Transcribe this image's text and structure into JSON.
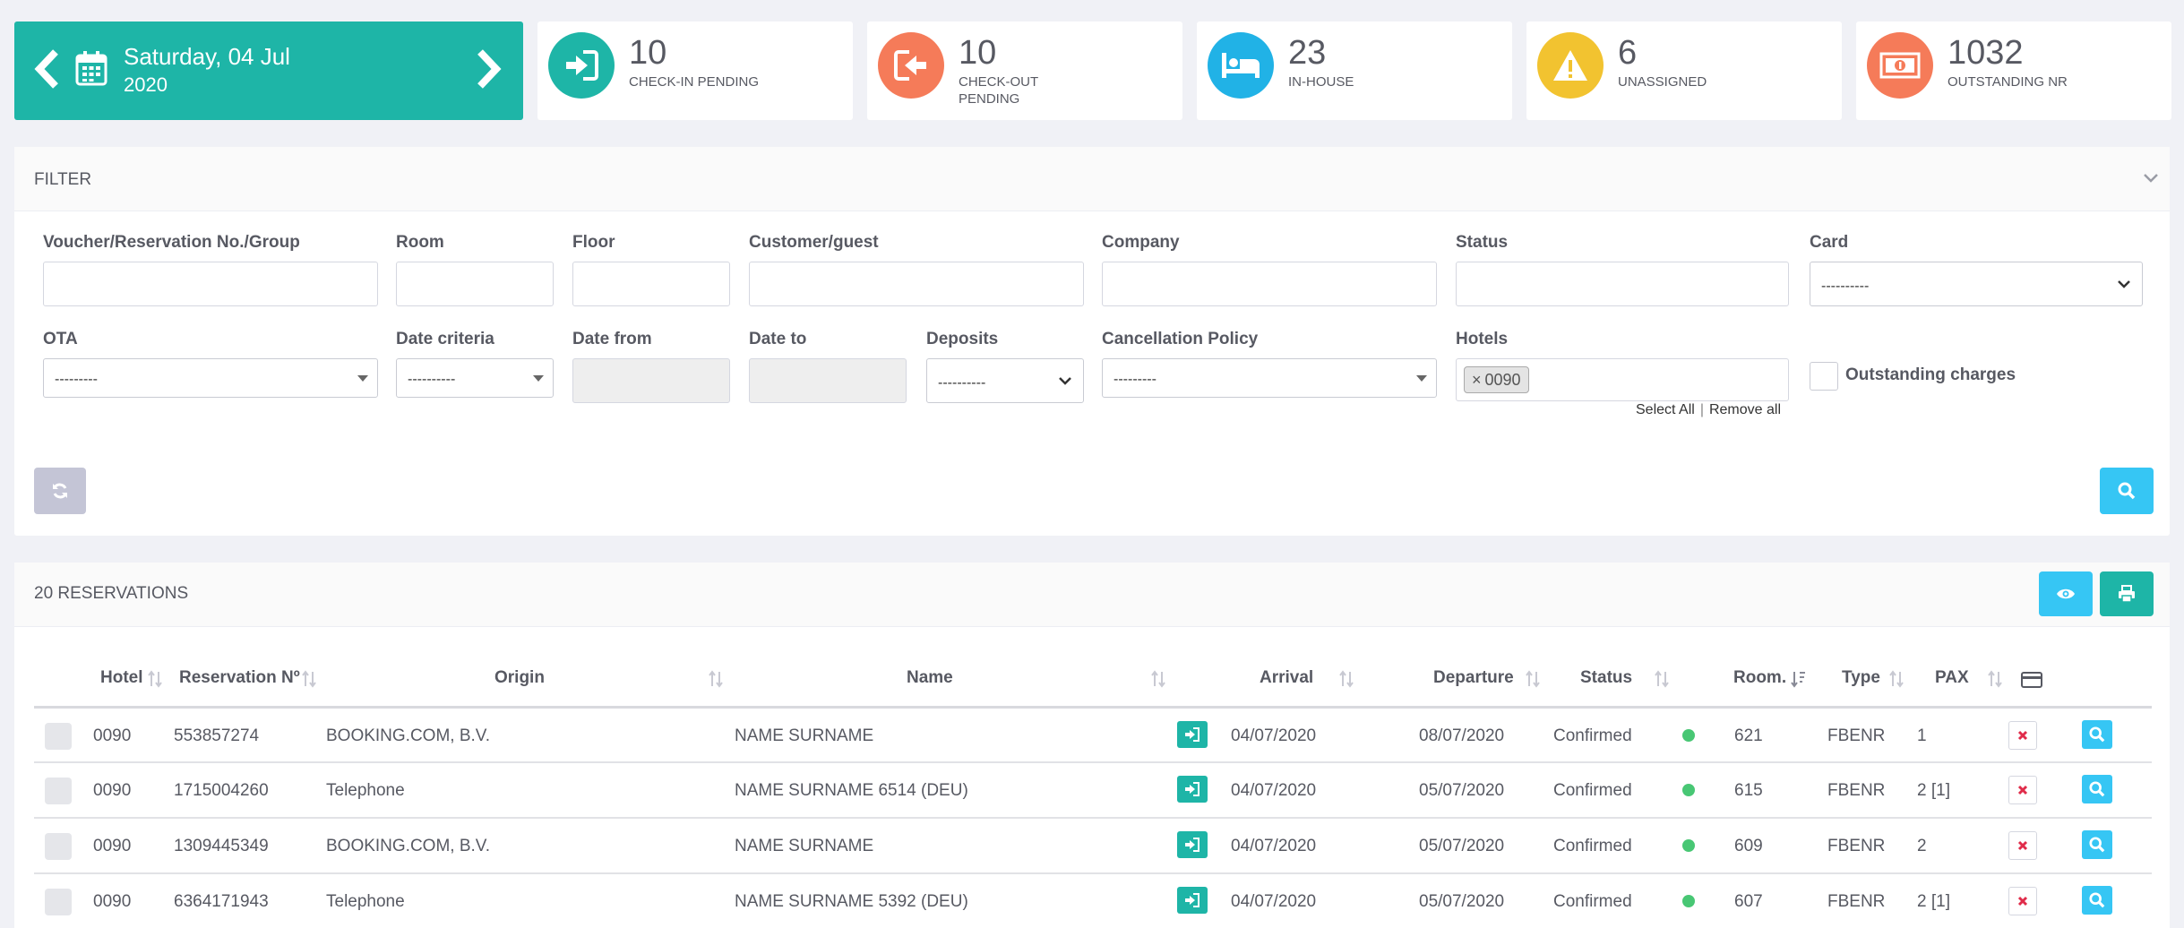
{
  "date_nav": {
    "day_line": "Saturday, 04 Jul",
    "year_line": "2020"
  },
  "stats": [
    {
      "number": "10",
      "label": "CHECK-IN PENDING",
      "color": "#1eb5a7",
      "icon": "check-in-icon"
    },
    {
      "number": "10",
      "label": "CHECK-OUT PENDING",
      "color": "#f57b59",
      "icon": "check-out-icon"
    },
    {
      "number": "23",
      "label": "IN-HOUSE",
      "color": "#21b2e6",
      "icon": "bed-icon"
    },
    {
      "number": "6",
      "label": "UNASSIGNED",
      "color": "#f2c330",
      "icon": "warning-icon"
    },
    {
      "number": "1032",
      "label": "OUTSTANDING NR",
      "color": "#f57b59",
      "icon": "money-icon"
    }
  ],
  "filter": {
    "title": "FILTER",
    "labels": {
      "voucher": "Voucher/Reservation No./Group",
      "room": "Room",
      "floor": "Floor",
      "customer": "Customer/guest",
      "company": "Company",
      "status": "Status",
      "card": "Card",
      "ota": "OTA",
      "date_criteria": "Date criteria",
      "date_from": "Date from",
      "date_to": "Date to",
      "deposits": "Deposits",
      "cancellation": "Cancellation Policy",
      "hotels": "Hotels",
      "outstanding": "Outstanding charges"
    },
    "values": {
      "card": "----------",
      "ota": "---------",
      "date_criteria": "----------",
      "deposits": "----------",
      "cancellation": "---------"
    },
    "hotel_tag": "0090",
    "hotel_tag_remove": "×",
    "select_all": "Select All",
    "separator": "|",
    "remove_all": "Remove all"
  },
  "reservations": {
    "title": "20 RESERVATIONS",
    "columns": {
      "hotel": "Hotel",
      "reservation": "Reservation Nº",
      "origin": "Origin",
      "name": "Name",
      "arrival": "Arrival",
      "departure": "Departure",
      "status": "Status",
      "room": "Room.",
      "type": "Type",
      "pax": "PAX"
    },
    "rows": [
      {
        "hotel": "0090",
        "res": "553857274",
        "origin": "BOOKING.COM, B.V.",
        "name": "NAME SURNAME",
        "arrival": "04/07/2020",
        "departure": "08/07/2020",
        "status": "Confirmed",
        "room": "621",
        "type": "FBENR",
        "pax": "1"
      },
      {
        "hotel": "0090",
        "res": "1715004260",
        "origin": "Telephone",
        "name": "NAME SURNAME 6514 (DEU)",
        "arrival": "04/07/2020",
        "departure": "05/07/2020",
        "status": "Confirmed",
        "room": "615",
        "type": "FBENR",
        "pax": "2 [1]"
      },
      {
        "hotel": "0090",
        "res": "1309445349",
        "origin": "BOOKING.COM, B.V.",
        "name": "NAME SURNAME",
        "arrival": "04/07/2020",
        "departure": "05/07/2020",
        "status": "Confirmed",
        "room": "609",
        "type": "FBENR",
        "pax": "2"
      },
      {
        "hotel": "0090",
        "res": "6364171943",
        "origin": "Telephone",
        "name": "NAME SURNAME 5392 (DEU)",
        "arrival": "04/07/2020",
        "departure": "05/07/2020",
        "status": "Confirmed",
        "room": "607",
        "type": "FBENR",
        "pax": "2 [1]"
      }
    ]
  },
  "colors": {
    "teal": "#1eb5a7",
    "light_blue": "#36c6f4",
    "status_green": "#48c774",
    "cancel_red": "#e02c4a"
  }
}
